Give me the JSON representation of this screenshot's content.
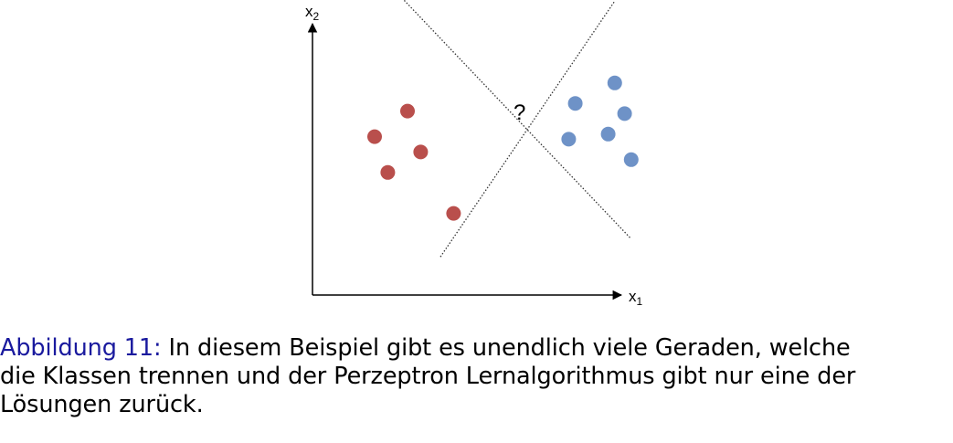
{
  "figure": {
    "axes": {
      "x_label": "x",
      "x_sub": "1",
      "y_label": "x",
      "y_sub": "2"
    },
    "question_mark": "?",
    "colors": {
      "class_a": "#b94f4c",
      "class_b": "#6e92c7",
      "axis": "#000000",
      "separator": "#333333"
    },
    "class_a_points": [
      {
        "x": 1.0,
        "y": 6.3
      },
      {
        "x": 0.0,
        "y": 5.3
      },
      {
        "x": 1.4,
        "y": 4.7
      },
      {
        "x": 0.4,
        "y": 3.9
      },
      {
        "x": 2.4,
        "y": 2.3
      }
    ],
    "class_b_points": [
      {
        "x": 7.3,
        "y": 7.4
      },
      {
        "x": 6.1,
        "y": 6.6
      },
      {
        "x": 7.6,
        "y": 6.2
      },
      {
        "x": 7.1,
        "y": 5.4
      },
      {
        "x": 5.9,
        "y": 5.2
      },
      {
        "x": 7.8,
        "y": 4.4
      }
    ],
    "separators": [
      {
        "from": {
          "x": 0.7,
          "y": 10.9
        },
        "to": {
          "x": 7.8,
          "y": 1.3
        }
      },
      {
        "from": {
          "x": 2.0,
          "y": 0.6
        },
        "to": {
          "x": 7.3,
          "y": 10.6
        }
      }
    ]
  },
  "caption": {
    "label": "Abbildung 11:",
    "line1": "In diesem Beispiel gibt es unendlich viele Geraden, welche",
    "line2": "die Klassen trennen und der Perzeptron Lernalgorithmus gibt nur eine der",
    "line3": "Lösungen zurück."
  }
}
